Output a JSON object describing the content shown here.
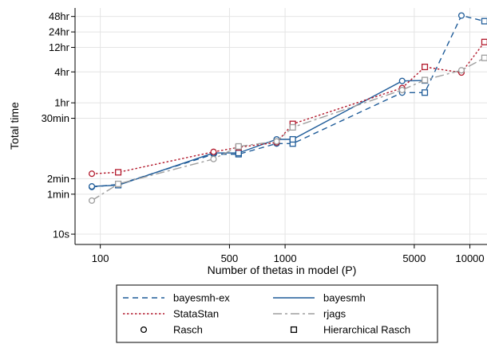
{
  "chart_data": {
    "type": "line",
    "title": "",
    "xlabel": "Number of thetas in model (P)",
    "ylabel": "Total time",
    "x_scale": "log",
    "y_scale": "log",
    "y_unit": "seconds",
    "xlim": [
      73,
      12500
    ],
    "ylim": [
      6.3,
      253000
    ],
    "grid": "horizontal and vertical",
    "legend_position": "bottom",
    "x_ticks": [
      {
        "value": 100,
        "label": "100"
      },
      {
        "value": 500,
        "label": "500"
      },
      {
        "value": 1000,
        "label": "1000"
      },
      {
        "value": 5000,
        "label": "5000"
      },
      {
        "value": 10000,
        "label": "10000"
      }
    ],
    "y_ticks": [
      {
        "value": 10,
        "label": "10s"
      },
      {
        "value": 60,
        "label": "1min"
      },
      {
        "value": 120,
        "label": "2min"
      },
      {
        "value": 1800,
        "label": "30min"
      },
      {
        "value": 3600,
        "label": "1hr"
      },
      {
        "value": 14400,
        "label": "4hr"
      },
      {
        "value": 43200,
        "label": "12hr"
      },
      {
        "value": 86400,
        "label": "24hr"
      },
      {
        "value": 172800,
        "label": "48hr"
      }
    ],
    "series": [
      {
        "name": "bayesmh-ex",
        "color": "#1f5c99",
        "dash": "dash",
        "points": [
          {
            "x": 90,
            "y": 83,
            "marker": "circle"
          },
          {
            "x": 125,
            "y": 93,
            "marker": "square"
          },
          {
            "x": 410,
            "y": 360,
            "marker": "circle"
          },
          {
            "x": 560,
            "y": 360,
            "marker": "square"
          },
          {
            "x": 900,
            "y": 580,
            "marker": "circle"
          },
          {
            "x": 1100,
            "y": 580,
            "marker": "square"
          },
          {
            "x": 4300,
            "y": 5700,
            "marker": "circle"
          },
          {
            "x": 5700,
            "y": 5700,
            "marker": "square"
          },
          {
            "x": 9000,
            "y": 180000,
            "marker": "circle"
          },
          {
            "x": 12000,
            "y": 140000,
            "marker": "square"
          }
        ]
      },
      {
        "name": "bayesmh",
        "color": "#1f5c99",
        "dash": "solid",
        "points": [
          {
            "x": 90,
            "y": 85,
            "marker": "circle"
          },
          {
            "x": 125,
            "y": 90,
            "marker": "square"
          },
          {
            "x": 410,
            "y": 380,
            "marker": "circle"
          },
          {
            "x": 560,
            "y": 380,
            "marker": "square"
          },
          {
            "x": 900,
            "y": 700,
            "marker": "circle"
          },
          {
            "x": 1100,
            "y": 700,
            "marker": "square"
          },
          {
            "x": 4300,
            "y": 9600,
            "marker": "circle"
          },
          {
            "x": 5700,
            "y": 9800,
            "marker": "square"
          }
        ]
      },
      {
        "name": "StataStan",
        "color": "#b2182b",
        "dash": "dot",
        "points": [
          {
            "x": 90,
            "y": 150,
            "marker": "circle"
          },
          {
            "x": 125,
            "y": 160,
            "marker": "square"
          },
          {
            "x": 410,
            "y": 400,
            "marker": "circle"
          },
          {
            "x": 560,
            "y": 490,
            "marker": "square"
          },
          {
            "x": 900,
            "y": 610,
            "marker": "circle"
          },
          {
            "x": 1100,
            "y": 1400,
            "marker": "square"
          },
          {
            "x": 4300,
            "y": 7000,
            "marker": "circle"
          },
          {
            "x": 5700,
            "y": 18000,
            "marker": "square"
          },
          {
            "x": 9000,
            "y": 14000,
            "marker": "circle"
          },
          {
            "x": 12000,
            "y": 55000,
            "marker": "square"
          }
        ]
      },
      {
        "name": "rjags",
        "color": "#9e9e9e",
        "dash": "longdash",
        "points": [
          {
            "x": 90,
            "y": 45,
            "marker": "circle"
          },
          {
            "x": 125,
            "y": 95,
            "marker": "square"
          },
          {
            "x": 410,
            "y": 290,
            "marker": "circle"
          },
          {
            "x": 560,
            "y": 510,
            "marker": "square"
          },
          {
            "x": 900,
            "y": 640,
            "marker": "circle"
          },
          {
            "x": 1100,
            "y": 1200,
            "marker": "square"
          },
          {
            "x": 4300,
            "y": 6400,
            "marker": "circle"
          },
          {
            "x": 5700,
            "y": 10000,
            "marker": "square"
          },
          {
            "x": 9000,
            "y": 15500,
            "marker": "circle"
          },
          {
            "x": 12000,
            "y": 27000,
            "marker": "square"
          }
        ]
      }
    ],
    "legend": [
      {
        "label": "bayesmh-ex",
        "kind": "line",
        "color": "#1f5c99",
        "dash": "dash"
      },
      {
        "label": "bayesmh",
        "kind": "line",
        "color": "#1f5c99",
        "dash": "solid"
      },
      {
        "label": "StataStan",
        "kind": "line",
        "color": "#b2182b",
        "dash": "dot"
      },
      {
        "label": "rjags",
        "kind": "line",
        "color": "#9e9e9e",
        "dash": "longdash"
      },
      {
        "label": "Rasch",
        "kind": "marker",
        "marker": "circle"
      },
      {
        "label": "Hierarchical Rasch",
        "kind": "marker",
        "marker": "square"
      }
    ]
  }
}
